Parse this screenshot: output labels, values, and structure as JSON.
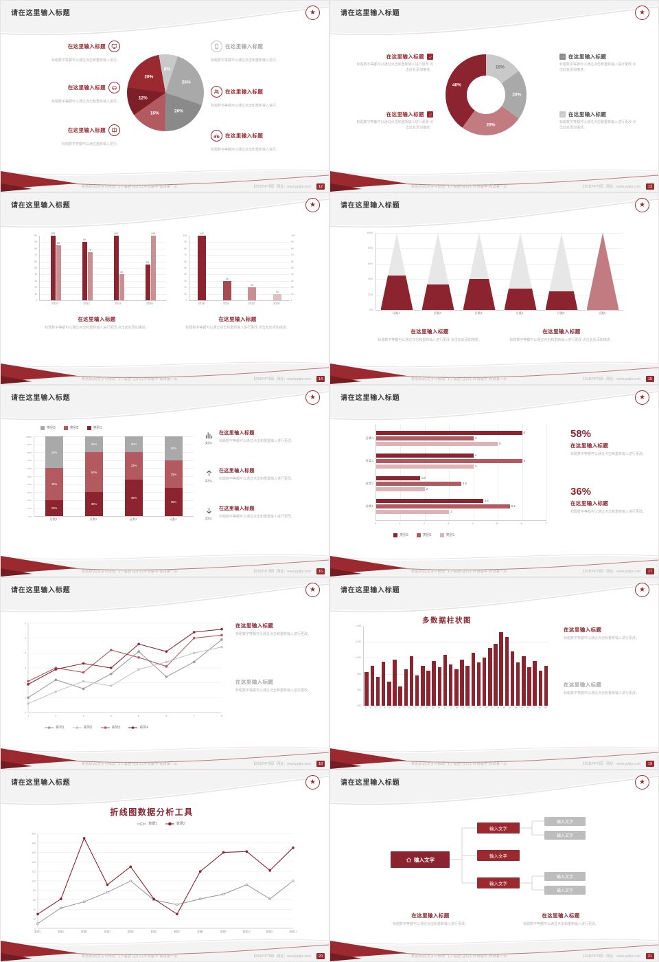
{
  "common": {
    "footer_left": "校名标识|文字可修改 【下载后·在幻灯片母版中·修改第一页",
    "footer_right": "【20年PPT网】 网址：www.pptjia.com",
    "logo_glyph": "★",
    "accent_color": "#9a2a2f",
    "dark_accent": "#8c2430"
  },
  "slides": [
    {
      "page": "12",
      "title": "请在这里输入标题",
      "layout": "pie-callouts",
      "chart_data": {
        "type": "pie",
        "slices": [
          {
            "label": "8%",
            "value": 8,
            "color": "#c9c9c9"
          },
          {
            "label": "25%",
            "value": 25,
            "color": "#a9a9a9"
          },
          {
            "label": "20%",
            "value": 20,
            "color": "#8a8a8a"
          },
          {
            "label": "15%",
            "value": 15,
            "color": "#b25a60"
          },
          {
            "label": "12%",
            "value": 12,
            "color": "#7c1f26"
          },
          {
            "label": "20%",
            "value": 20,
            "color": "#9a2a2f"
          }
        ]
      },
      "items_left": [
        {
          "title": "在这里输入标题",
          "desc": "标题数字等都可以通过点击和重新输入进行。",
          "icon": "monitor-icon",
          "accent": true
        },
        {
          "title": "在这里输入标题",
          "desc": "标题数字等都可以通过点击和重新输入进行。",
          "icon": "car-icon",
          "accent": true
        },
        {
          "title": "在这里输入标题",
          "desc": "标题数字等都可以通过重新输入进行。",
          "icon": "book-icon",
          "accent": true
        }
      ],
      "items_right": [
        {
          "title": "在这里输入标题",
          "desc": "标题数字等都可以通过点击和重新输入进行。",
          "icon": "phone-icon",
          "accent": false
        },
        {
          "title": "在这里输入标题",
          "desc": "标题数字等都可以通过点击和重新输入进行。",
          "icon": "people-icon",
          "accent": true
        },
        {
          "title": "在这里输入标题",
          "desc": "标题数字等都可以通过点击和重新输入进行。",
          "icon": "bike-icon",
          "accent": true
        }
      ]
    },
    {
      "page": "13",
      "title": "请在这里输入标题",
      "layout": "donut-checklist",
      "chart_data": {
        "type": "donut",
        "slices": [
          {
            "label": "15%",
            "value": 15,
            "color": "#c9c9c9",
            "label_color": "#6f6f6f"
          },
          {
            "label": "20%",
            "value": 20,
            "color": "#a9a9a9"
          },
          {
            "label": "25%",
            "value": 25,
            "color": "#c27b80"
          },
          {
            "label": "40%",
            "value": 40,
            "color": "#8c2430"
          }
        ]
      },
      "items_left": [
        {
          "title": "在这里输入标题",
          "desc": "标题数字等都可以通过点击和重新输入进行更改 点击此处添加描述。"
        },
        {
          "title": "在这里输入标题",
          "desc": "标题数字等都可以通过点击和重新输入进行更改 点击此处添加描述。"
        }
      ],
      "items_right": [
        {
          "title": "在这里输入标题",
          "desc": "标题数字等都可以通过点击和重新输入进行更改 点击此处添加描述。",
          "box_color": "#8a8a8a"
        },
        {
          "title": "在这里输入标题",
          "desc": "标题数字等都可以通过点击和重新输入进行更改 点击此处添加描述。",
          "box_color": "#c9c9c9"
        }
      ]
    },
    {
      "page": "14",
      "title": "请在这里输入标题",
      "layout": "dual-bars",
      "chart_data": [
        {
          "type": "bar",
          "categories": [
            "2010",
            "2012",
            "2014",
            "2016"
          ],
          "series": [
            {
              "name": "系列1",
              "color": "#8c2430",
              "values": [
                100,
                90,
                100,
                55
              ]
            },
            {
              "name": "系列2",
              "color": "#c98f93",
              "values": [
                85,
                75,
                40,
                100
              ]
            }
          ],
          "ylim": [
            0,
            100
          ],
          "yticks": [
            0,
            10,
            20,
            30,
            40,
            50,
            60,
            70,
            80,
            90,
            100
          ]
        },
        {
          "type": "bar",
          "categories": [
            "2016",
            "2014",
            "2012",
            "2010"
          ],
          "values": [
            100,
            30,
            20,
            10
          ],
          "colors": [
            "#8c2430",
            "#a84a52",
            "#c98f93",
            "#e0bfc1"
          ],
          "ylim": [
            0,
            100
          ],
          "yticks": [
            0,
            10,
            20,
            30,
            40,
            50,
            60,
            70,
            80,
            90,
            100
          ]
        }
      ],
      "blocks": [
        {
          "title": "在这里输入标题",
          "desc": "标题数字等都可以通过点击和重新输入进行更改 点击此处添加描述。"
        },
        {
          "title": "在这里输入标题",
          "desc": "标题数字等都可以通过点击和重新输入进行更改 点击此处添加描述。"
        }
      ]
    },
    {
      "page": "15",
      "title": "请在这里输入标题",
      "layout": "pyramid",
      "chart_data": {
        "type": "pyramid",
        "categories": [
          "分类1",
          "分类2",
          "分类3",
          "分类4",
          "分类5",
          "分类6"
        ],
        "items": [
          {
            "fill_pct": 45,
            "fill": "#8c2430"
          },
          {
            "fill_pct": 33,
            "fill": "#8c2430"
          },
          {
            "fill_pct": 40,
            "fill": "#8c2430"
          },
          {
            "fill_pct": 28,
            "fill": "#8c2430"
          },
          {
            "fill_pct": 24,
            "fill": "#8c2430"
          },
          {
            "fill_pct": 100,
            "fill": "#c27b80"
          }
        ],
        "yticks": [
          "0%",
          "20%",
          "40%",
          "60%",
          "80%",
          "100%"
        ]
      },
      "blocks": [
        {
          "title": "在这里输入标题",
          "desc": "标题数字等都可以通过点击和重新输入进行更改 点击此处添加描述。"
        },
        {
          "title": "在这里输入标题",
          "desc": "标题数字等都可以通过点击和重新输入进行更改 点击此处添加描述。"
        }
      ]
    },
    {
      "page": "16",
      "title": "请在这里输入标题",
      "layout": "stacked-items",
      "legend": [
        {
          "label": "类别3",
          "color": "#a9a9a9"
        },
        {
          "label": "类别2",
          "color": "#b25a60"
        },
        {
          "label": "类别1",
          "color": "#8c2430"
        }
      ],
      "chart_data": {
        "type": "stacked-bar",
        "categories": [
          "分类1",
          "分类2",
          "分类3",
          "分类4"
        ],
        "series": [
          {
            "name": "类别1",
            "color": "#8c2430",
            "values": [
              20,
              30,
              46,
              35
            ]
          },
          {
            "name": "类别2",
            "color": "#b25a60",
            "values": [
              40,
              50,
              34,
              35
            ]
          },
          {
            "name": "类别3",
            "color": "#a9a9a9",
            "values": [
              40,
              20,
              20,
              30
            ]
          }
        ],
        "yticks": [
          "0%",
          "10%",
          "20%",
          "30%",
          "40%",
          "50%",
          "60%",
          "70%",
          "80%",
          "90%",
          "100%"
        ]
      },
      "items": [
        {
          "icon": "bar-chart-icon",
          "tag": "类别3",
          "title": "在这里输入标题",
          "desc": "标题数字等都可以通过点击和重置输入进行更改。"
        },
        {
          "icon": "arrow-up-icon",
          "tag": "类别2",
          "title": "在这里输入标题",
          "desc": "标题数字等都可以通过点击和重置输入进行更改。"
        },
        {
          "icon": "arrow-down-icon",
          "tag": "类别1",
          "title": "在这里输入标题",
          "desc": "标题数字等都可以通过点击和重置输入进行更改。"
        }
      ]
    },
    {
      "page": "17",
      "title": "请在这里输入标题",
      "layout": "hbar-stats",
      "chart_data": {
        "type": "horizontal-bar",
        "categories": [
          "分类4",
          "分类3",
          "分类2",
          "分类1"
        ],
        "series": [
          {
            "name": "类别3",
            "color": "#8c2430",
            "values": [
              6,
              4,
              1.8,
              4.4
            ]
          },
          {
            "name": "类别2",
            "color": "#b25a60",
            "values": [
              4,
              6,
              3.5,
              5.5
            ]
          },
          {
            "name": "类别1",
            "color": "#ddb3b6",
            "values": [
              5,
              4,
              2,
              3
            ]
          }
        ],
        "xticks": [
          0,
          1,
          2,
          3,
          4,
          5,
          6,
          7
        ]
      },
      "legend": [
        {
          "label": "类别3",
          "color": "#8c2430"
        },
        {
          "label": "类别2",
          "color": "#b25a60"
        },
        {
          "label": "类别1",
          "color": "#ddb3b6"
        }
      ],
      "stats": [
        {
          "value": "58%",
          "title": "在这里输入标题",
          "desc": "标题数字等都可以通过点击和重新输入进行更改。"
        },
        {
          "value": "36%",
          "title": "在这里输入标题",
          "desc": "标题数字等都可以通过点击和重新输入进行更改。"
        }
      ]
    },
    {
      "page": "18",
      "title": "请在这里输入标题",
      "layout": "line-blocks",
      "chart_data": {
        "type": "line",
        "x": [
          1,
          2,
          3,
          4,
          5,
          6,
          7,
          8
        ],
        "ylim": [
          0,
          6
        ],
        "yticks": [
          0,
          1,
          2,
          3,
          4,
          5,
          6
        ],
        "series": [
          {
            "name": "系列1",
            "color": "#9b9b9b",
            "values": [
              1,
              2.2,
              1.6,
              2.6,
              4.1,
              2.4,
              3.4,
              4.9
            ]
          },
          {
            "name": "系列2",
            "color": "#c7c7c7",
            "values": [
              0.6,
              1.4,
              2.1,
              1.8,
              2.9,
              3.4,
              4.0,
              4.4
            ]
          },
          {
            "name": "系列3",
            "color": "#b25a60",
            "values": [
              2.1,
              3.0,
              2.7,
              4.2,
              3.7,
              3.1,
              5.0,
              5.2
            ]
          },
          {
            "name": "系列4",
            "color": "#8c2430",
            "values": [
              1.9,
              2.9,
              3.3,
              3.0,
              4.6,
              4.1,
              5.4,
              5.6
            ]
          }
        ]
      },
      "blocks": [
        {
          "title": "在这里输入标题",
          "desc": "标题数字等都可以通过点击和重新输入进行更改。"
        },
        {
          "title": "在这里输入标题",
          "desc": "标题数字等都可以通过点击和重新输入进行更改。"
        }
      ]
    },
    {
      "page": "19",
      "title": "请在这里输入标题",
      "layout": "columns-blocks",
      "chart_title": "多数据柱状图",
      "chart_data": {
        "type": "bar",
        "color": "#8c2430",
        "x_labels": [
          "1",
          "2",
          "3",
          "4",
          "5",
          "6",
          "7",
          "8",
          "9",
          "10",
          "11",
          "12",
          "13",
          "14",
          "15",
          "16",
          "17",
          "18",
          "19",
          "20",
          "21",
          "22",
          "23",
          "24",
          "25",
          "26",
          "27",
          "28",
          "29",
          "30",
          "31",
          "32",
          "33"
        ],
        "values": [
          820,
          900,
          760,
          950,
          700,
          980,
          640,
          860,
          1020,
          780,
          900,
          840,
          960,
          880,
          1040,
          920,
          860,
          980,
          900,
          1060,
          940,
          1000,
          1120,
          1180,
          1320,
          1260,
          1080,
          940,
          1020,
          880,
          960,
          840,
          900
        ],
        "yticks": [
          "400",
          "600",
          "800",
          "1,000",
          "1,200",
          "1,400"
        ],
        "ylim": [
          400,
          1400
        ]
      },
      "blocks": [
        {
          "title": "在这里输入标题",
          "desc": "标题数字等都可以通过点击和重新输入进行更改。"
        },
        {
          "title": "在这里输入标题",
          "desc": "标题数字等都可以通过点击和重新输入进行更改。"
        }
      ]
    },
    {
      "page": "20",
      "title": "请在这里输入标题",
      "layout": "line-titled",
      "chart_title": "折线图数据分析工具",
      "legend": [
        {
          "label": "数据1",
          "color": "#9b9b9b",
          "filled": false
        },
        {
          "label": "数据2",
          "color": "#8c2430",
          "filled": true
        }
      ],
      "chart_data": {
        "type": "line",
        "x_labels": [
          "数据1",
          "数据2",
          "数据3",
          "数据4",
          "数据5",
          "数据6",
          "数据7",
          "数据8",
          "数据9",
          "数据10",
          "数据11",
          "数据12"
        ],
        "ylim": [
          2,
          202
        ],
        "yticks": [
          2,
          22,
          42,
          62,
          82,
          102,
          122,
          142,
          162,
          182,
          202
        ],
        "series": [
          {
            "name": "数据1",
            "color": "#9b9b9b",
            "marker": "open",
            "values": [
              12,
              45,
              58,
              78,
              102,
              62,
              52,
              64,
              74,
              94,
              64,
              102
            ]
          },
          {
            "name": "数据2",
            "color": "#8c2430",
            "values": [
              32,
              64,
              192,
              94,
              132,
              64,
              32,
              122,
              162,
              164,
              124,
              172
            ]
          }
        ]
      }
    },
    {
      "page": "21",
      "title": "请在这里输入标题",
      "layout": "org-diagram",
      "diagram": {
        "root": {
          "label": "输入文字",
          "icon": "home-icon"
        },
        "children": [
          {
            "label": "输入文字",
            "leaves": [
              "输入文字",
              "输入文字"
            ]
          },
          {
            "label": "输入文字",
            "leaves": []
          },
          {
            "label": "输入文字",
            "leaves": [
              "输入文字",
              "输入文字"
            ]
          }
        ]
      },
      "blocks": [
        {
          "title": "在这里输入标题",
          "desc": "标题数字等都可以通过点击和重新输入进行更改。"
        },
        {
          "title": "在这里输入标题",
          "desc": "标题数字等都可以通过点击和重新输入进行更改。"
        }
      ]
    }
  ]
}
